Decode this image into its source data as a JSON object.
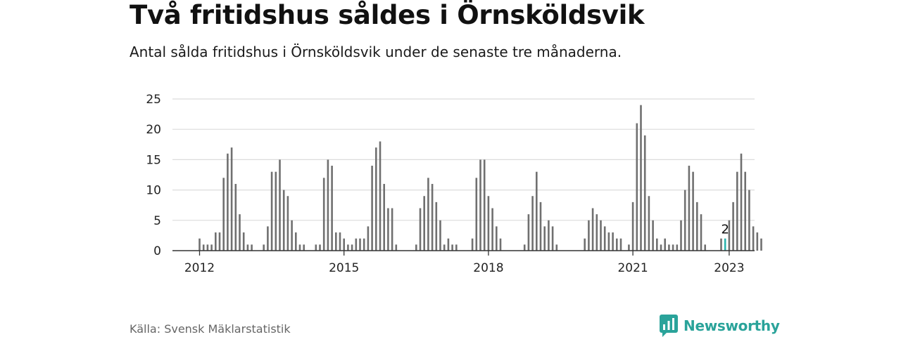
{
  "header": {
    "title": "Två fritidshus såldes i Örnsköldsvik",
    "subtitle": "Antal sålda fritidshus i Örnsköldsvik under de senaste tre månaderna."
  },
  "chart_data": {
    "type": "bar",
    "start": "2012-01",
    "y_ticks": [
      0,
      5,
      10,
      15,
      20,
      25
    ],
    "ylim": [
      0,
      25
    ],
    "x_ticks": [
      {
        "label": "2012",
        "month": "2012-01"
      },
      {
        "label": "2015",
        "month": "2015-01"
      },
      {
        "label": "2018",
        "month": "2018-01"
      },
      {
        "label": "2021",
        "month": "2021-01"
      },
      {
        "label": "2023",
        "month": "2023-01"
      }
    ],
    "values": [
      2,
      1,
      1,
      1,
      3,
      3,
      12,
      16,
      17,
      11,
      6,
      3,
      1,
      1,
      0,
      0,
      1,
      4,
      13,
      13,
      15,
      10,
      9,
      5,
      3,
      1,
      1,
      0,
      0,
      1,
      1,
      12,
      15,
      14,
      3,
      3,
      2,
      1,
      1,
      2,
      2,
      2,
      4,
      14,
      17,
      18,
      11,
      7,
      7,
      1,
      0,
      0,
      0,
      0,
      1,
      7,
      9,
      12,
      11,
      8,
      5,
      1,
      2,
      1,
      1,
      0,
      0,
      0,
      2,
      12,
      15,
      15,
      9,
      7,
      4,
      2,
      0,
      0,
      0,
      0,
      0,
      1,
      6,
      9,
      13,
      8,
      4,
      5,
      4,
      1,
      0,
      0,
      0,
      0,
      0,
      0,
      2,
      5,
      7,
      6,
      5,
      4,
      3,
      3,
      2,
      2,
      0,
      1,
      8,
      21,
      24,
      19,
      9,
      5,
      2,
      1,
      2,
      1,
      1,
      1,
      5,
      10,
      14,
      13,
      8,
      6,
      1,
      0,
      0,
      0,
      2,
      2,
      5,
      8,
      13,
      16,
      13,
      10,
      4,
      3,
      2
    ],
    "highlight": {
      "index": 131,
      "label": "2"
    },
    "colors": {
      "bar": "#707070",
      "highlight": "#2bb3ad",
      "grid": "#dcdcdc",
      "axis": "#333333"
    }
  },
  "footer": {
    "source": "Källa: Svensk Mäklarstatistik",
    "brand": "Newsworthy"
  }
}
